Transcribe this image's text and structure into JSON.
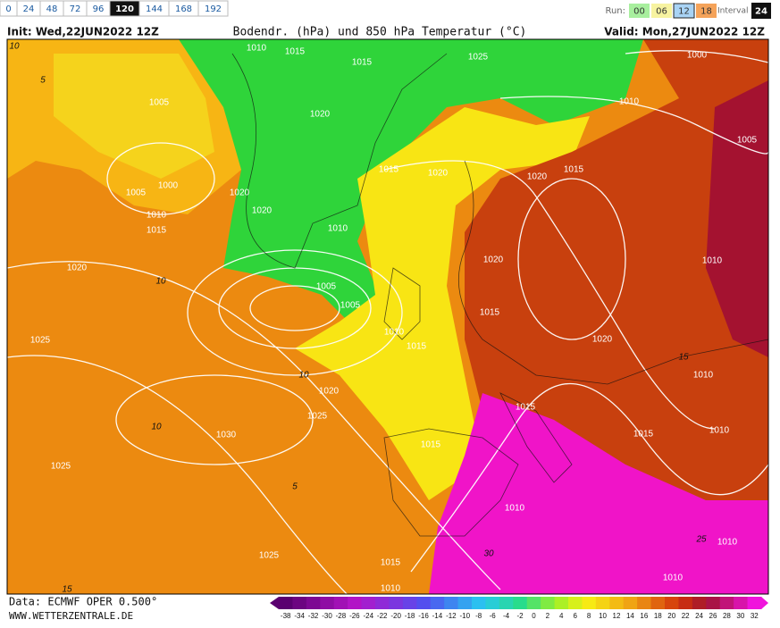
{
  "top_bar": {
    "steps": [
      {
        "label": "0",
        "selected": false
      },
      {
        "label": "24",
        "selected": false
      },
      {
        "label": "48",
        "selected": false
      },
      {
        "label": "72",
        "selected": false
      },
      {
        "label": "96",
        "selected": false
      },
      {
        "label": "120",
        "selected": true
      },
      {
        "label": "144",
        "selected": false
      },
      {
        "label": "168",
        "selected": false
      },
      {
        "label": "192",
        "selected": false
      }
    ],
    "run_label": "Run:",
    "runs": [
      {
        "label": "00",
        "color": "#a8ef9e"
      },
      {
        "label": "06",
        "color": "#f7f3a0"
      },
      {
        "label": "12",
        "color": "#a9d3f5"
      },
      {
        "label": "18",
        "color": "#f5a35a"
      }
    ],
    "interval_label": "Interval",
    "interval": "24"
  },
  "header": {
    "init": "Init: Wed,22JUN2022 12Z",
    "title": "Bodendr. (hPa) und 850 hPa Temperatur (°C)",
    "valid": "Valid: Mon,27JUN2022 12Z"
  },
  "map": {
    "isobar_labels": [
      "1010",
      "1015",
      "1015",
      "1025",
      "1000",
      "1005",
      "1020",
      "1010",
      "1005",
      "1000",
      "1005",
      "1015",
      "1020",
      "1015",
      "1020",
      "1020",
      "1020",
      "1010",
      "1015",
      "1010",
      "1020",
      "1005",
      "1020",
      "1010",
      "1005",
      "1015",
      "1010",
      "1015",
      "1025",
      "1020",
      "1010",
      "1020",
      "1015",
      "1025",
      "1030",
      "1015",
      "1010",
      "1015",
      "1025",
      "1010",
      "1010",
      "1025",
      "1015",
      "1010",
      "1010"
    ],
    "temperature_labels": [
      "10",
      "5",
      "10",
      "10",
      "15",
      "5",
      "10",
      "30",
      "25",
      "15"
    ]
  },
  "footer": {
    "source": "Data: ECMWF OPER 0.500°",
    "site": "WWW.WETTERZENTRALE.DE",
    "scale": [
      "-38",
      "-34",
      "-32",
      "-30",
      "-28",
      "-26",
      "-24",
      "-22",
      "-20",
      "-18",
      "-16",
      "-14",
      "-12",
      "-10",
      "-8",
      "-6",
      "-4",
      "-2",
      "0",
      "2",
      "4",
      "6",
      "8",
      "10",
      "12",
      "14",
      "16",
      "18",
      "20",
      "22",
      "24",
      "26",
      "28",
      "30",
      "32"
    ]
  }
}
